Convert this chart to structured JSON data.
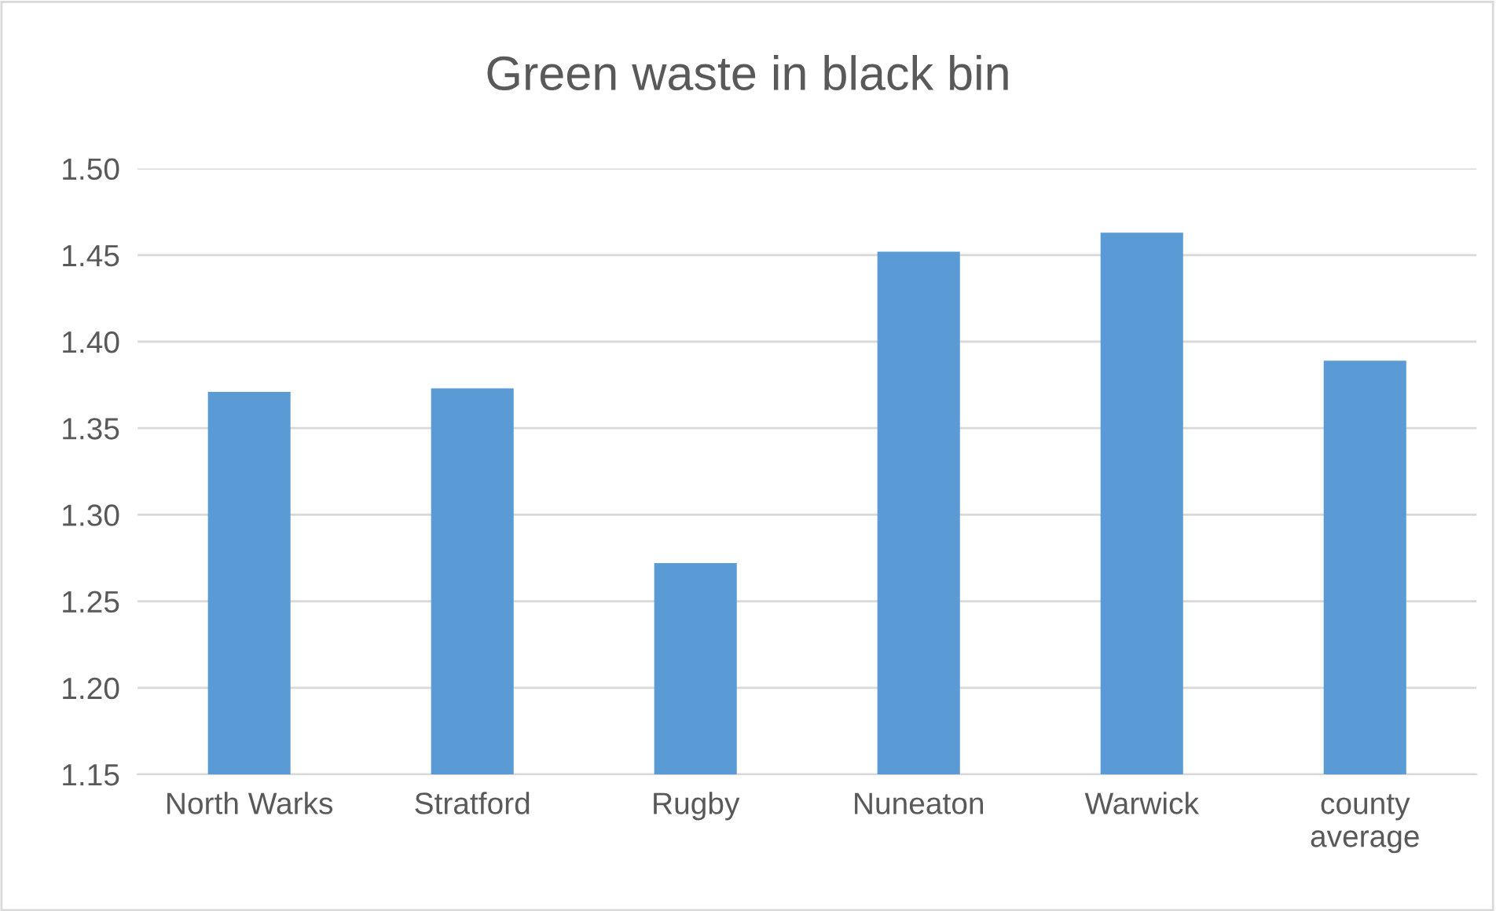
{
  "chart_data": {
    "type": "bar",
    "title": "Green waste in black bin",
    "categories": [
      "North Warks",
      "Stratford",
      "Rugby",
      "Nuneaton",
      "Warwick",
      "county\naverage"
    ],
    "values": [
      1.371,
      1.373,
      1.272,
      1.452,
      1.463,
      1.389
    ],
    "color": "#5b9bd5",
    "ylim": [
      1.15,
      1.5
    ],
    "yticks": [
      {
        "value": 1.15,
        "label": "1.15"
      },
      {
        "value": 1.2,
        "label": "1.20"
      },
      {
        "value": 1.25,
        "label": "1.25"
      },
      {
        "value": 1.3,
        "label": "1.30"
      },
      {
        "value": 1.35,
        "label": "1.35"
      },
      {
        "value": 1.4,
        "label": "1.40"
      },
      {
        "value": 1.45,
        "label": "1.45"
      },
      {
        "value": 1.5,
        "label": "1.50"
      }
    ],
    "grid": "y",
    "legend": false
  }
}
